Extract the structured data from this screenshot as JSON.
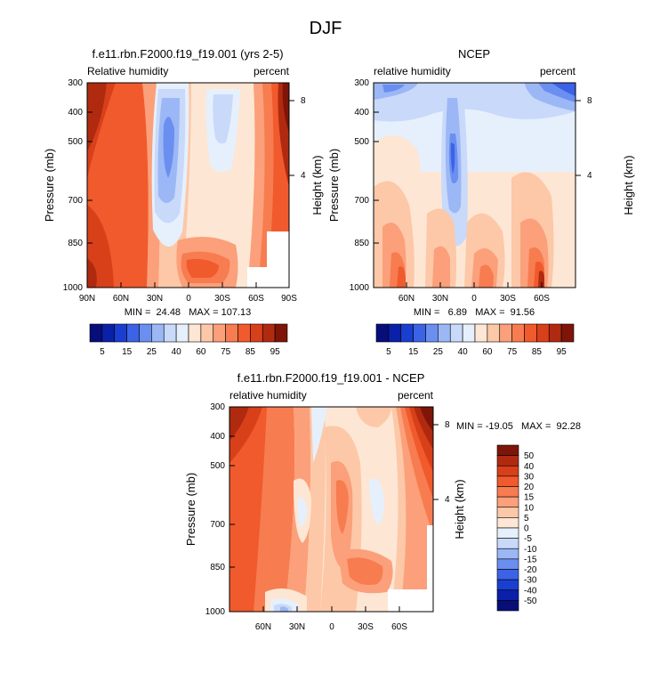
{
  "figure_title": "DJF",
  "chart_data": [
    {
      "type": "heatmap",
      "title": "f.e11.rbn.F2000.f19_f19.001 (yrs 2-5)",
      "left_string": "Relative humidity",
      "right_string": "percent",
      "ylabel": "Pressure (mb)",
      "y2label": "Height (km)",
      "ylim": [
        1000,
        300
      ],
      "y_ticks": [
        "300",
        "400",
        "500",
        "700",
        "850",
        "1000"
      ],
      "y2_ticks": [
        "8",
        "4"
      ],
      "x_ticks": [
        "90N",
        "60N",
        "30N",
        "0",
        "30S",
        "60S",
        "90S"
      ],
      "stats": "MIN =  24.48   MAX = 107.13",
      "min": 24.48,
      "max": 107.13,
      "colorbar_labels": [
        "5",
        "15",
        "25",
        "40",
        "60",
        "75",
        "85",
        "95"
      ]
    },
    {
      "type": "heatmap",
      "title": "NCEP",
      "left_string": "relative humidity",
      "right_string": "percent",
      "ylabel": "Pressure (mb)",
      "y2label": "Height (km)",
      "ylim": [
        1000,
        300
      ],
      "y_ticks": [
        "300",
        "400",
        "500",
        "700",
        "850",
        "1000"
      ],
      "y2_ticks": [
        "8",
        "4"
      ],
      "x_ticks": [
        "60N",
        "30N",
        "0",
        "30S",
        "60S"
      ],
      "stats": "MIN =   6.89   MAX =  91.56",
      "min": 6.89,
      "max": 91.56,
      "colorbar_labels": [
        "5",
        "15",
        "25",
        "40",
        "60",
        "75",
        "85",
        "95"
      ]
    },
    {
      "type": "heatmap",
      "title": "f.e11.rbn.F2000.f19_f19.001 - NCEP",
      "left_string": "relative humidity",
      "right_string": "percent",
      "ylabel": "Pressure (mb)",
      "y2label": "Height (km)",
      "ylim": [
        1000,
        300
      ],
      "y_ticks": [
        "300",
        "400",
        "500",
        "700",
        "850",
        "1000"
      ],
      "y2_ticks": [
        "8",
        "4"
      ],
      "x_ticks": [
        "60N",
        "30N",
        "0",
        "30S",
        "60S"
      ],
      "stats": "MIN = -19.05   MAX =  92.28",
      "min": -19.05,
      "max": 92.28,
      "colorbar_labels": [
        "50",
        "40",
        "30",
        "20",
        "15",
        "10",
        "5",
        "0",
        "-5",
        "-10",
        "-15",
        "-20",
        "-30",
        "-40",
        "-50"
      ]
    }
  ],
  "palette_rh": [
    "#070e7a",
    "#0a20a8",
    "#1a3fd0",
    "#3c63e6",
    "#6a8ff0",
    "#9cb7f5",
    "#c8d9fa",
    "#e6f0fc",
    "#fde6d4",
    "#fcc8a8",
    "#fba07a",
    "#f77c50",
    "#f05a2c",
    "#d8401a",
    "#b02a10",
    "#7e1508"
  ],
  "palette_diff": [
    "#7e1508",
    "#b02a10",
    "#d8401a",
    "#f05a2c",
    "#f77c50",
    "#fba07a",
    "#fcc8a8",
    "#fde6d4",
    "#e6f0fc",
    "#c8d9fa",
    "#9cb7f5",
    "#6a8ff0",
    "#3c63e6",
    "#1a3fd0",
    "#0a20a8",
    "#070e7a"
  ]
}
